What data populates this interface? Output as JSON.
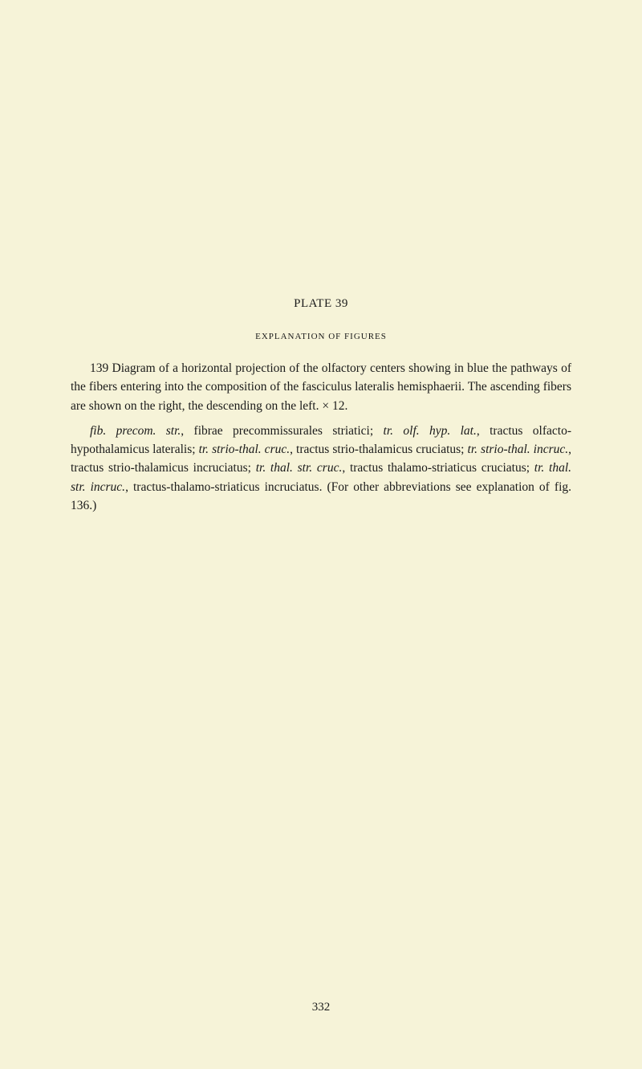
{
  "plate": {
    "title": "PLATE 39",
    "subtitle": "EXPLANATION OF FIGURES"
  },
  "paragraph1": {
    "figno": "139",
    "text_a": " Diagram of a horizontal projection of the olfactory centers showing in blue the pathways of the fibers entering into the composition of the fasciculus lateralis hemisphaerii. The ascending fibers are shown on the right, the descending on the left. × 12."
  },
  "paragraph2": {
    "abbr1": "fib. precom. str.",
    "text1": ", fibrae precommissurales striatici; ",
    "abbr2": "tr. olf. hyp. lat.",
    "text2": ", tractus olfacto-hypothalamicus lateralis; ",
    "abbr3": "tr. strio-thal. cruc.",
    "text3": ", tractus strio-thalamicus cruciatus; ",
    "abbr4": "tr. strio-thal. incruc.",
    "text4": ", tractus strio-thalamicus incruciatus; ",
    "abbr5": "tr. thal. str. cruc.",
    "text5": ", tractus thalamo-striaticus cruciatus; ",
    "abbr6": "tr. thal. str. incruc.",
    "text6": ", tractus-thalamo-striaticus incruciatus. (For other abbreviations see explanation of fig. 136.)"
  },
  "page_number": "332",
  "styles": {
    "background_color": "#f6f3d8",
    "text_color": "#1a1a1a",
    "body_fontsize": 15.5,
    "title_fontsize": 15,
    "subtitle_fontsize": 11,
    "line_height": 1.5
  }
}
